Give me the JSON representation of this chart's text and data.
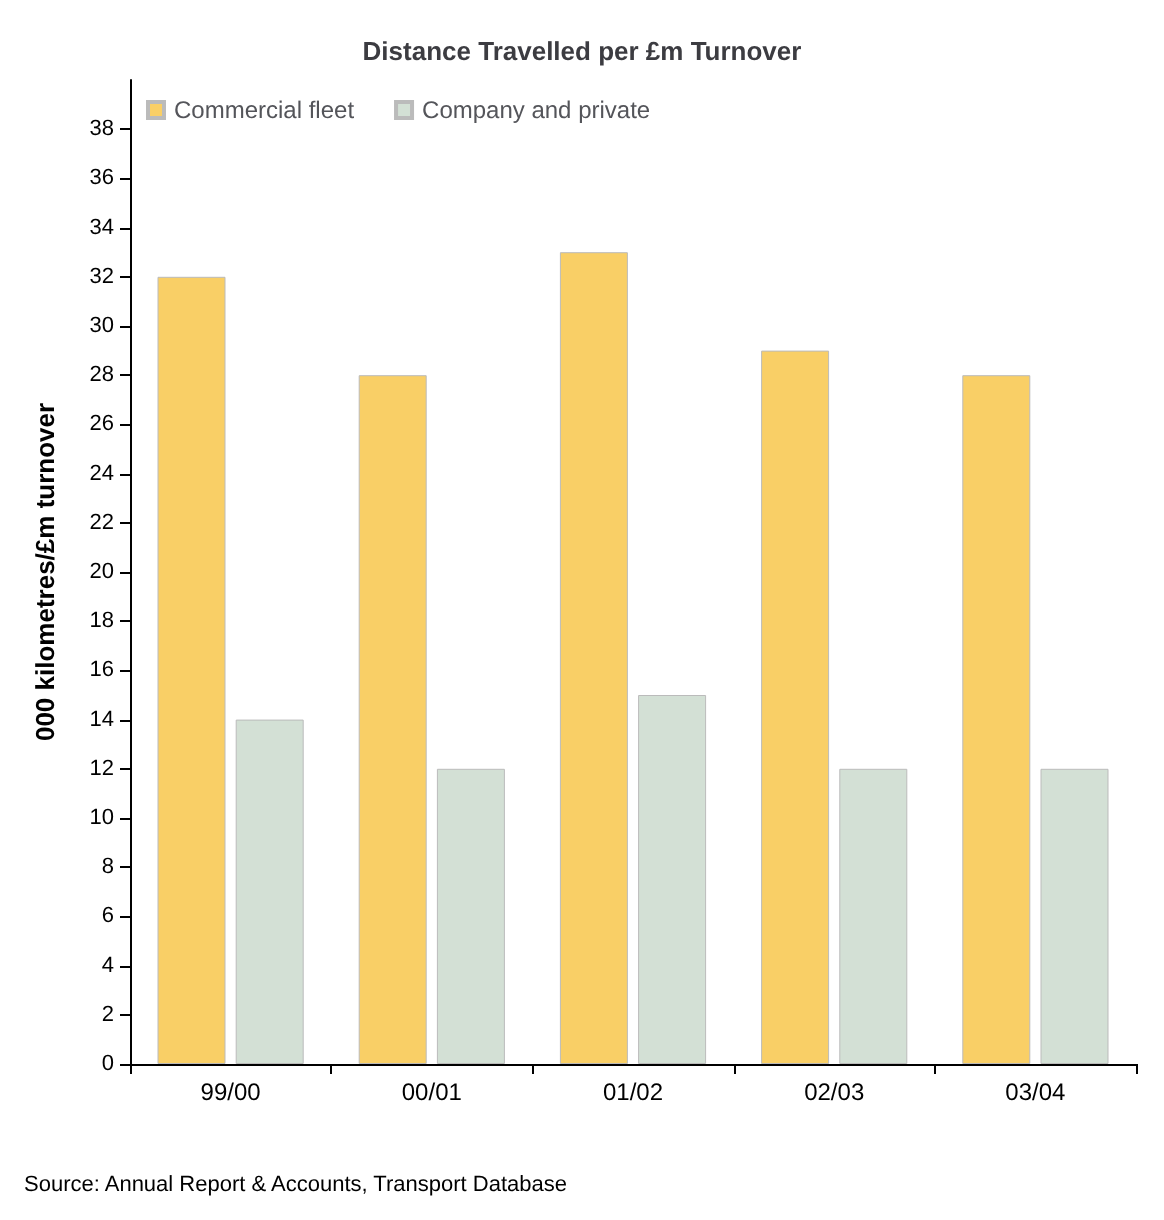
{
  "chart_data": {
    "type": "bar",
    "title": "Distance Travelled per £m Turnover",
    "ylabel": "000 kilometres/£m turnover",
    "categories": [
      "99/00",
      "00/01",
      "01/02",
      "02/03",
      "03/04"
    ],
    "series": [
      {
        "name": "Commercial fleet",
        "color": "#f9cf66",
        "values": [
          32,
          28,
          33,
          29,
          28
        ]
      },
      {
        "name": "Company and private",
        "color": "#d3e0d5",
        "values": [
          14,
          12,
          15,
          12,
          12
        ]
      }
    ],
    "ylim": [
      0,
      40
    ],
    "yticks": [
      0,
      2,
      4,
      6,
      8,
      10,
      12,
      14,
      16,
      18,
      20,
      22,
      24,
      26,
      28,
      30,
      32,
      34,
      36,
      38
    ],
    "grid": false,
    "legend": "top left",
    "annotations": [
      "Source: Annual Report & Accounts, Transport Database"
    ]
  }
}
